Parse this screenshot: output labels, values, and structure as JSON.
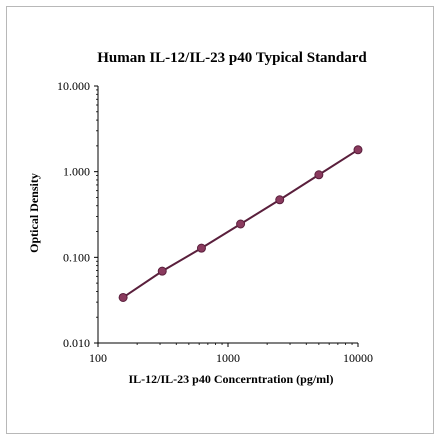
{
  "chart_data": {
    "type": "line",
    "title": "Human IL-12/IL-23 p40 Typical Standard",
    "xlabel": "IL-12/IL-23 p40 Concerntration (pg/ml)",
    "ylabel": "Optical Density",
    "x_scale": "log",
    "y_scale": "log",
    "xlim": [
      100,
      10000
    ],
    "ylim": [
      0.01,
      10
    ],
    "x_ticks": [
      "100",
      "1000",
      "10000"
    ],
    "y_ticks": [
      "10.000",
      "1.000",
      "0.100",
      "0.010"
    ],
    "grid": false,
    "legend": "none",
    "series": [
      {
        "x": [
          156,
          312,
          625,
          1250,
          2500,
          5000,
          10000
        ],
        "y": [
          0.034,
          0.069,
          0.128,
          0.245,
          0.47,
          0.92,
          1.8
        ],
        "color": "#8a3a5e",
        "line_color": "#5a1f3c"
      }
    ]
  }
}
